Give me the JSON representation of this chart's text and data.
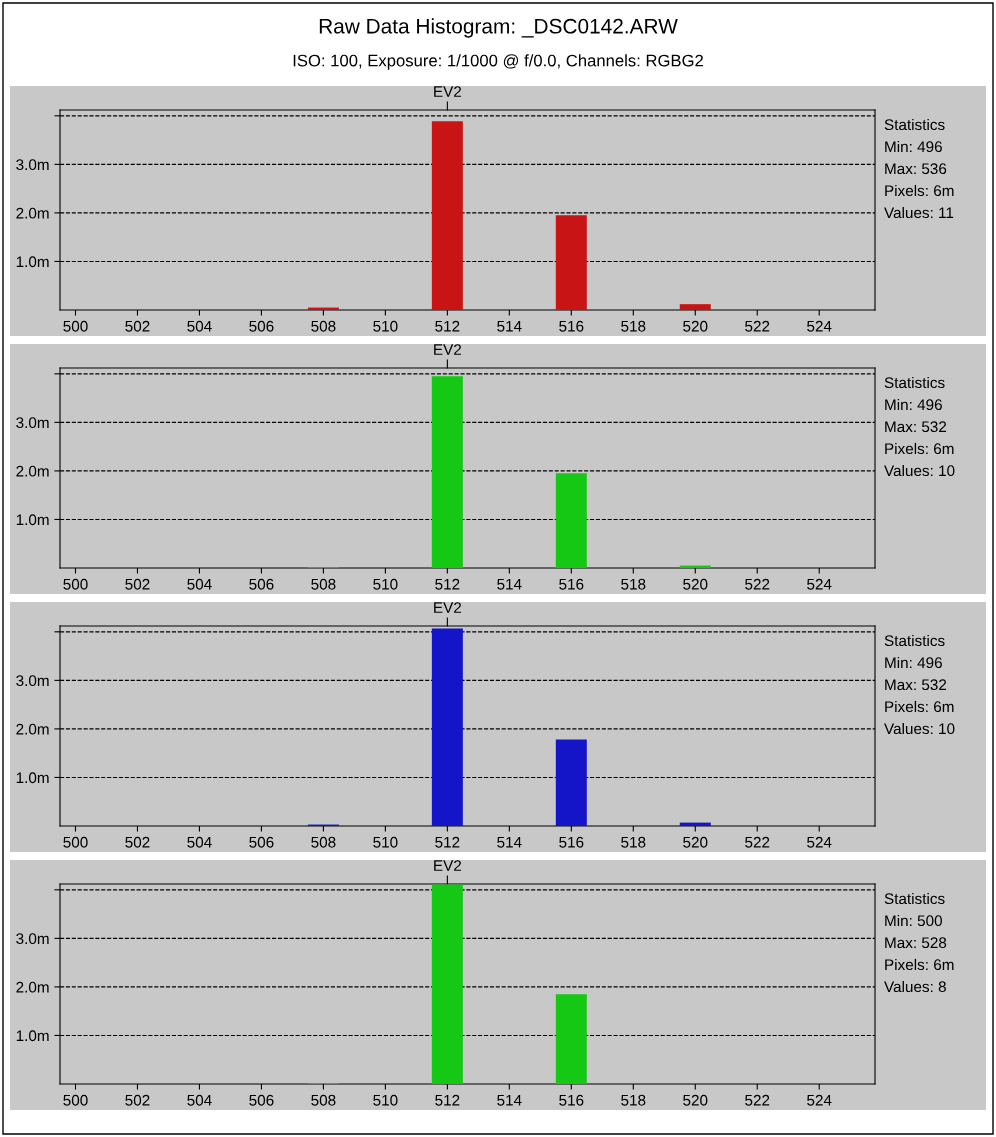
{
  "chart_data": [
    {
      "type": "histogram",
      "title": "Raw Data Histogram: _DSC0142.ARW",
      "subtitle": "ISO: 100, Exposure: 1/1000 @ f/0.0, Channels: RGBG2",
      "color": "#c81414",
      "bins": [
        507.5,
        508.5,
        509.5,
        510.5,
        511.5,
        512.5,
        513.5,
        514.5,
        515.5,
        516.5,
        517.5,
        518.5,
        519.5,
        520.5
      ],
      "values": [
        0.05,
        0,
        0,
        0,
        3.89,
        0,
        0,
        0,
        1.95,
        0,
        0,
        0,
        0.12
      ],
      "xlim": [
        499.5,
        525.8
      ],
      "xticks": [
        500,
        502,
        504,
        506,
        508,
        510,
        512,
        514,
        516,
        518,
        520,
        522,
        524
      ],
      "ylim": [
        0,
        4.12
      ],
      "yticks": [
        {
          "value": 1,
          "label": "1.0m"
        },
        {
          "value": 2,
          "label": "2.0m"
        },
        {
          "value": 3,
          "label": "3.0m"
        },
        {
          "value": 4,
          "label": null
        }
      ],
      "grid": "y",
      "ref_lines": [
        {
          "axis": "x",
          "value": 512,
          "label": "EV2"
        }
      ],
      "annotations": [
        "Statistics",
        "Min: 496",
        "Max: 536",
        "Pixels: 6m",
        "Values: 11"
      ]
    },
    {
      "type": "histogram",
      "color": "#14c814",
      "bins": [
        507.5,
        508.5,
        509.5,
        510.5,
        511.5,
        512.5,
        513.5,
        514.5,
        515.5,
        516.5,
        517.5,
        518.5,
        519.5,
        520.5
      ],
      "values": [
        0.02,
        0,
        0,
        0,
        3.95,
        0,
        0,
        0,
        1.95,
        0,
        0,
        0,
        0.05
      ],
      "xlim": [
        499.5,
        525.8
      ],
      "xticks": [
        500,
        502,
        504,
        506,
        508,
        510,
        512,
        514,
        516,
        518,
        520,
        522,
        524
      ],
      "ylim": [
        0,
        4.12
      ],
      "yticks": [
        {
          "value": 1,
          "label": "1.0m"
        },
        {
          "value": 2,
          "label": "2.0m"
        },
        {
          "value": 3,
          "label": "3.0m"
        },
        {
          "value": 4,
          "label": null
        }
      ],
      "grid": "y",
      "ref_lines": [
        {
          "axis": "x",
          "value": 512,
          "label": "EV2"
        }
      ],
      "annotations": [
        "Statistics",
        "Min: 496",
        "Max: 532",
        "Pixels: 6m",
        "Values: 10"
      ]
    },
    {
      "type": "histogram",
      "color": "#1414c8",
      "bins": [
        507.5,
        508.5,
        509.5,
        510.5,
        511.5,
        512.5,
        513.5,
        514.5,
        515.5,
        516.5,
        517.5,
        518.5,
        519.5,
        520.5
      ],
      "values": [
        0.03,
        0,
        0,
        0,
        4.07,
        0,
        0,
        0,
        1.78,
        0,
        0,
        0,
        0.07
      ],
      "xlim": [
        499.5,
        525.8
      ],
      "xticks": [
        500,
        502,
        504,
        506,
        508,
        510,
        512,
        514,
        516,
        518,
        520,
        522,
        524
      ],
      "ylim": [
        0,
        4.12
      ],
      "yticks": [
        {
          "value": 1,
          "label": "1.0m"
        },
        {
          "value": 2,
          "label": "2.0m"
        },
        {
          "value": 3,
          "label": "3.0m"
        },
        {
          "value": 4,
          "label": null
        }
      ],
      "grid": "y",
      "ref_lines": [
        {
          "axis": "x",
          "value": 512,
          "label": "EV2"
        }
      ],
      "annotations": [
        "Statistics",
        "Min: 496",
        "Max: 532",
        "Pixels: 6m",
        "Values: 10"
      ]
    },
    {
      "type": "histogram",
      "color": "#14c814",
      "bins": [
        507.5,
        508.5,
        509.5,
        510.5,
        511.5,
        512.5,
        513.5,
        514.5,
        515.5,
        516.5,
        517.5,
        518.5,
        519.5,
        520.5
      ],
      "values": [
        0.02,
        0,
        0,
        0,
        4.11,
        0,
        0,
        0,
        1.85,
        0,
        0,
        0,
        0
      ],
      "xlim": [
        499.5,
        525.8
      ],
      "xticks": [
        500,
        502,
        504,
        506,
        508,
        510,
        512,
        514,
        516,
        518,
        520,
        522,
        524
      ],
      "ylim": [
        0,
        4.12
      ],
      "yticks": [
        {
          "value": 1,
          "label": "1.0m"
        },
        {
          "value": 2,
          "label": "2.0m"
        },
        {
          "value": 3,
          "label": "3.0m"
        },
        {
          "value": 4,
          "label": null
        }
      ],
      "grid": "y",
      "ref_lines": [
        {
          "axis": "x",
          "value": 512,
          "label": "EV2"
        }
      ],
      "annotations": [
        "Statistics",
        "Min: 500",
        "Max: 528",
        "Pixels: 6m",
        "Values: 8"
      ]
    }
  ]
}
